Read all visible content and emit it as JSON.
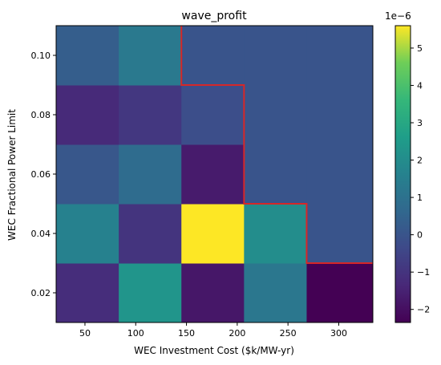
{
  "chart_data": {
    "type": "heatmap",
    "title": "wave_profit",
    "xlabel": "WEC Investment Cost ($k/MW-yr)",
    "ylabel": "WEC Fractional Power Limit",
    "x_ticks": [
      "50",
      "100",
      "150",
      "200",
      "250",
      "300"
    ],
    "y_ticks": [
      "0.02",
      "0.04",
      "0.06",
      "0.08",
      "0.10"
    ],
    "x_centers": [
      50,
      100,
      150,
      200,
      250,
      300
    ],
    "x_range": [
      21.6,
      333.6
    ],
    "y_range": [
      0.01,
      0.11
    ],
    "cell_x": [
      21.6,
      83.3,
      145.0,
      206.7,
      268.4,
      333.6
    ],
    "cell_y": [
      0.01,
      0.03,
      0.05,
      0.07,
      0.09,
      0.11
    ],
    "values": [
      [
        -1.2e-06,
        2.3e-06,
        -1.8e-06,
        1.2e-06,
        -2.35e-06
      ],
      [
        1.6e-06,
        -1e-06,
        5.6e-06,
        2e-06,
        0.0
      ],
      [
        1e-07,
        8e-07,
        -1.7e-06,
        0.0,
        0.0
      ],
      [
        -1.3e-06,
        -9e-07,
        -2e-07,
        0.0,
        0.0
      ],
      [
        3e-07,
        1.3e-06,
        0.0,
        0.0,
        0.0
      ]
    ],
    "colorbar": {
      "min": -2.35e-06,
      "max": 5.6e-06,
      "ticks": [
        -2,
        -1,
        0,
        1,
        2,
        3,
        4,
        5
      ],
      "tick_labels": [
        "−2",
        "−1",
        "0",
        "1",
        "2",
        "3",
        "4",
        "5"
      ],
      "offset_label": "1e−6",
      "colormap": "viridis"
    },
    "boundary": {
      "color": "#d62728",
      "points": [
        [
          145.0,
          0.11
        ],
        [
          145.0,
          0.09
        ],
        [
          206.7,
          0.09
        ],
        [
          206.7,
          0.05
        ],
        [
          268.4,
          0.05
        ],
        [
          268.4,
          0.03
        ],
        [
          333.6,
          0.03
        ]
      ]
    },
    "grid": false
  }
}
